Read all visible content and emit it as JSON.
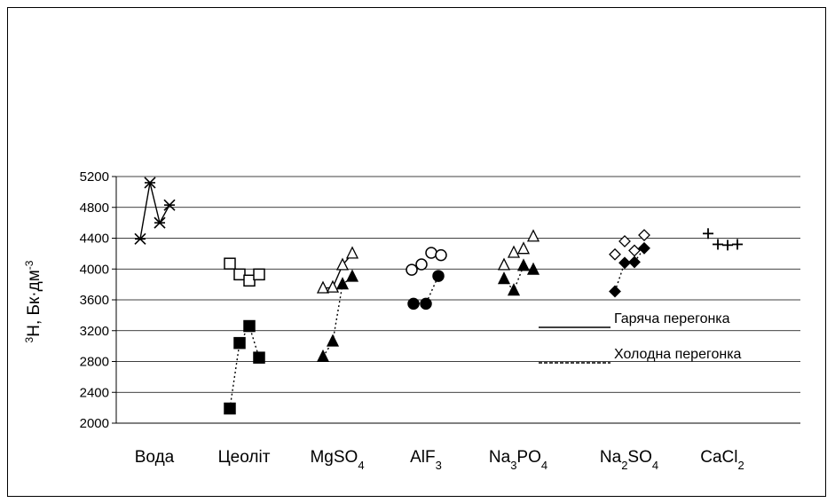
{
  "chart_data": {
    "type": "scatter",
    "title": "",
    "xlabel": "",
    "ylabel": "³H, Бк·дм⁻³",
    "ylabel_base": "H, Бк·дм",
    "ylabel_sup_pre": "3",
    "ylabel_sup_post": "-3",
    "ylim": [
      2000,
      5200
    ],
    "y_ticks": [
      "2000",
      "2400",
      "2800",
      "3200",
      "3600",
      "4000",
      "4400",
      "4800",
      "5200"
    ],
    "grid": true,
    "legend_position": "right",
    "categories": [
      {
        "base": "Вода",
        "sub": "",
        "tail": ""
      },
      {
        "base": "Цеоліт",
        "sub": "",
        "tail": ""
      },
      {
        "base": "MgSO",
        "sub": "4",
        "tail": ""
      },
      {
        "base": "AlF",
        "sub": "3",
        "tail": ""
      },
      {
        "base": "Na",
        "sub": "3",
        "tail": "PO",
        "sub2": "4"
      },
      {
        "base": "Na",
        "sub": "2",
        "tail": "SO",
        "sub2": "4"
      },
      {
        "base": "CaCl",
        "sub": "2",
        "tail": ""
      }
    ],
    "series": [
      {
        "name": "Гаряча перегонка",
        "line": "solid",
        "groups": [
          {
            "category": "Вода",
            "marker": "asterisk",
            "connected": true,
            "values": [
              4390,
              5120,
              4600,
              4830
            ]
          },
          {
            "category": "Цеоліт",
            "marker": "square-open",
            "connected": false,
            "values": [
              4070,
              3930,
              3850,
              3930
            ]
          },
          {
            "category": "MgSO4",
            "marker": "triangle-open",
            "connected": true,
            "values": [
              3750,
              3760,
              4050,
              4200
            ]
          },
          {
            "category": "AlF3",
            "marker": "circle-open",
            "connected": false,
            "values": [
              3990,
              4060,
              4210,
              4180
            ]
          },
          {
            "category": "Na3PO4",
            "marker": "triangle-open",
            "connected": false,
            "values": [
              4050,
              4210,
              4260,
              4420
            ]
          },
          {
            "category": "Na2SO4",
            "marker": "diamond-open",
            "connected": false,
            "values": [
              4190,
              4360,
              4240,
              4440
            ]
          },
          {
            "category": "CaCl2",
            "marker": "plus",
            "connected": false,
            "values": [
              4460,
              4320,
              4310,
              4320
            ]
          }
        ]
      },
      {
        "name": "Холодна перегонка",
        "line": "dotted",
        "groups": [
          {
            "category": "Цеоліт",
            "marker": "square-filled",
            "connected": true,
            "values": [
              2190,
              3040,
              3260,
              2850
            ]
          },
          {
            "category": "MgSO4",
            "marker": "triangle-filled",
            "connected": true,
            "values": [
              2860,
              3060,
              3800,
              3900
            ]
          },
          {
            "category": "AlF3",
            "marker": "circle-filled",
            "connected": true,
            "values": [
              3550,
              3550,
              3910
            ]
          },
          {
            "category": "Na3PO4",
            "marker": "triangle-filled",
            "connected": true,
            "values": [
              3870,
              3720,
              4040,
              3990
            ]
          },
          {
            "category": "Na2SO4",
            "marker": "diamond-filled",
            "connected": true,
            "values": [
              3710,
              4080,
              4090,
              4270
            ]
          }
        ]
      }
    ]
  }
}
